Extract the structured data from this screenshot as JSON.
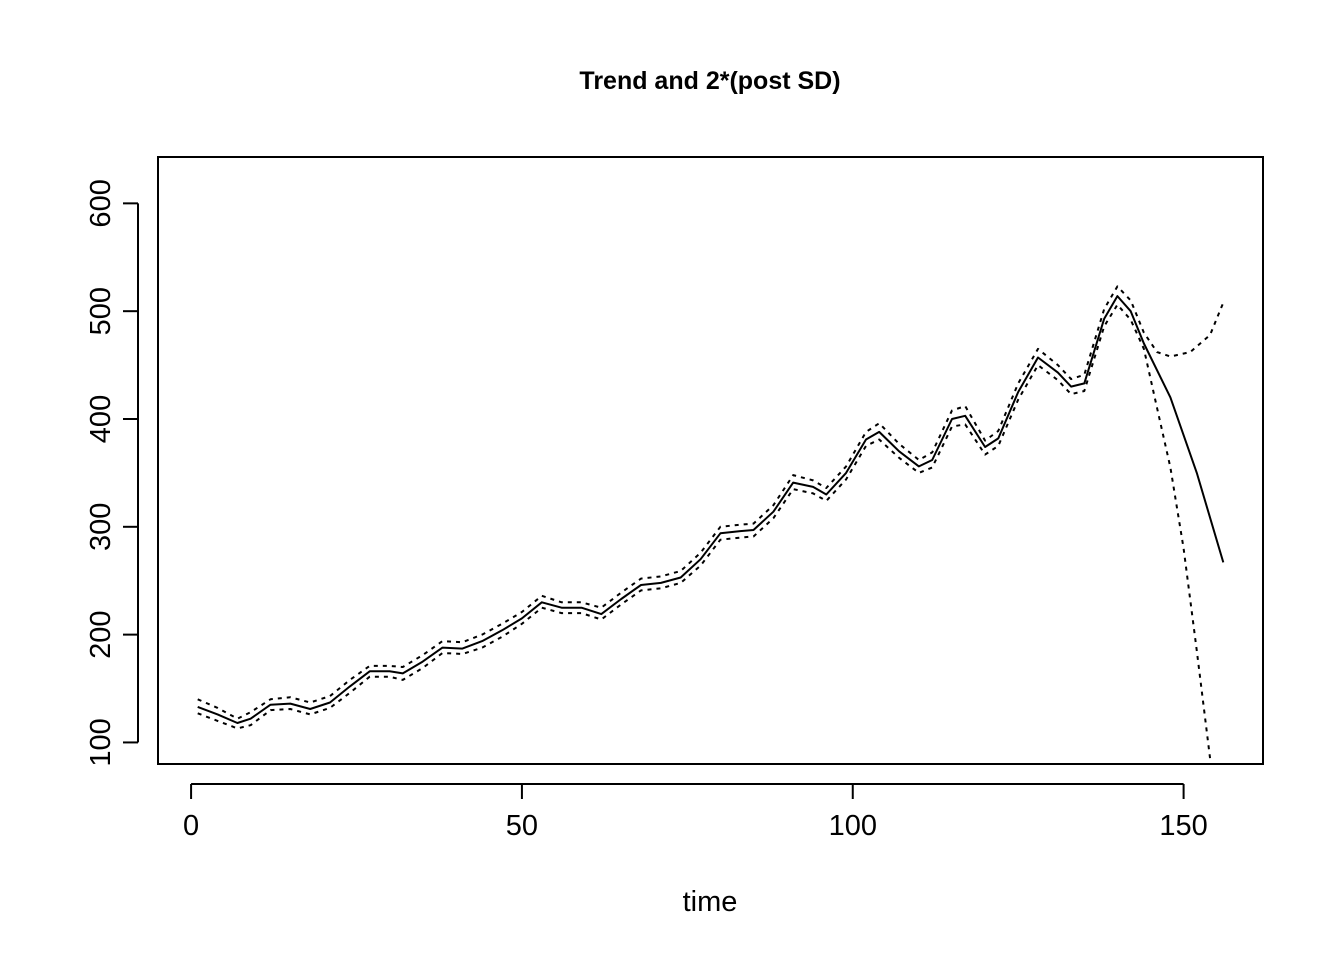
{
  "chart_data": {
    "type": "line",
    "title": "Trend and 2*(post SD)",
    "xlabel": "time",
    "ylabel": "",
    "xlim": [
      -5,
      162
    ],
    "ylim": [
      80,
      643
    ],
    "xticks": [
      0,
      50,
      100,
      150
    ],
    "yticks": [
      100,
      200,
      300,
      400,
      500,
      600
    ],
    "grid": false,
    "legend": "none",
    "series": [
      {
        "style": "solid",
        "color": "#000000",
        "points": [
          [
            1,
            133
          ],
          [
            4,
            126
          ],
          [
            7,
            118
          ],
          [
            9,
            122
          ],
          [
            12,
            135
          ],
          [
            15,
            136
          ],
          [
            18,
            131
          ],
          [
            21,
            137
          ],
          [
            24,
            152
          ],
          [
            27,
            166
          ],
          [
            30,
            166
          ],
          [
            32,
            164
          ],
          [
            35,
            175
          ],
          [
            38,
            188
          ],
          [
            41,
            187
          ],
          [
            44,
            194
          ],
          [
            47,
            204
          ],
          [
            50,
            215
          ],
          [
            53,
            230
          ],
          [
            56,
            225
          ],
          [
            59,
            225
          ],
          [
            62,
            219
          ],
          [
            65,
            233
          ],
          [
            68,
            246
          ],
          [
            71,
            248
          ],
          [
            74,
            253
          ],
          [
            77,
            270
          ],
          [
            80,
            294
          ],
          [
            83,
            296
          ],
          [
            85,
            297
          ],
          [
            88,
            314
          ],
          [
            91,
            341
          ],
          [
            94,
            337
          ],
          [
            96,
            330
          ],
          [
            99,
            350
          ],
          [
            102,
            381
          ],
          [
            104,
            388
          ],
          [
            107,
            370
          ],
          [
            110,
            356
          ],
          [
            112,
            362
          ],
          [
            115,
            400
          ],
          [
            117,
            403
          ],
          [
            120,
            374
          ],
          [
            122,
            382
          ],
          [
            125,
            425
          ],
          [
            128,
            457
          ],
          [
            131,
            443
          ],
          [
            133,
            430
          ],
          [
            135,
            433
          ],
          [
            138,
            493
          ],
          [
            140,
            514
          ],
          [
            142,
            500
          ],
          [
            144,
            470
          ],
          [
            148,
            420
          ],
          [
            152,
            350
          ],
          [
            156,
            267
          ]
        ]
      },
      {
        "style": "dotted",
        "color": "#000000",
        "points": [
          [
            1,
            140
          ],
          [
            4,
            132
          ],
          [
            7,
            122
          ],
          [
            9,
            128
          ],
          [
            12,
            140
          ],
          [
            15,
            142
          ],
          [
            18,
            137
          ],
          [
            21,
            143
          ],
          [
            24,
            158
          ],
          [
            27,
            171
          ],
          [
            30,
            171
          ],
          [
            32,
            170
          ],
          [
            35,
            181
          ],
          [
            38,
            194
          ],
          [
            41,
            193
          ],
          [
            44,
            200
          ],
          [
            47,
            210
          ],
          [
            50,
            221
          ],
          [
            53,
            236
          ],
          [
            56,
            230
          ],
          [
            59,
            230
          ],
          [
            62,
            225
          ],
          [
            65,
            239
          ],
          [
            68,
            252
          ],
          [
            71,
            254
          ],
          [
            74,
            259
          ],
          [
            77,
            276
          ],
          [
            80,
            300
          ],
          [
            83,
            302
          ],
          [
            85,
            303
          ],
          [
            88,
            320
          ],
          [
            91,
            348
          ],
          [
            94,
            343
          ],
          [
            96,
            336
          ],
          [
            99,
            356
          ],
          [
            102,
            388
          ],
          [
            104,
            396
          ],
          [
            107,
            377
          ],
          [
            110,
            362
          ],
          [
            112,
            369
          ],
          [
            115,
            408
          ],
          [
            117,
            412
          ],
          [
            120,
            380
          ],
          [
            122,
            389
          ],
          [
            125,
            433
          ],
          [
            128,
            465
          ],
          [
            131,
            450
          ],
          [
            133,
            437
          ],
          [
            135,
            441
          ],
          [
            138,
            502
          ],
          [
            140,
            523
          ],
          [
            142,
            510
          ],
          [
            144,
            480
          ],
          [
            146,
            462
          ],
          [
            148,
            458
          ],
          [
            151,
            462
          ],
          [
            154,
            478
          ],
          [
            156,
            508
          ]
        ]
      },
      {
        "style": "dotted",
        "color": "#000000",
        "points": [
          [
            1,
            127
          ],
          [
            4,
            120
          ],
          [
            7,
            113
          ],
          [
            9,
            116
          ],
          [
            12,
            130
          ],
          [
            15,
            131
          ],
          [
            18,
            126
          ],
          [
            21,
            132
          ],
          [
            24,
            146
          ],
          [
            27,
            161
          ],
          [
            30,
            161
          ],
          [
            32,
            158
          ],
          [
            35,
            169
          ],
          [
            38,
            183
          ],
          [
            41,
            182
          ],
          [
            44,
            188
          ],
          [
            47,
            198
          ],
          [
            50,
            210
          ],
          [
            53,
            225
          ],
          [
            56,
            220
          ],
          [
            59,
            220
          ],
          [
            62,
            214
          ],
          [
            65,
            228
          ],
          [
            68,
            241
          ],
          [
            71,
            243
          ],
          [
            74,
            248
          ],
          [
            77,
            264
          ],
          [
            80,
            288
          ],
          [
            83,
            290
          ],
          [
            85,
            291
          ],
          [
            88,
            308
          ],
          [
            91,
            335
          ],
          [
            94,
            331
          ],
          [
            96,
            324
          ],
          [
            99,
            344
          ],
          [
            102,
            375
          ],
          [
            104,
            381
          ],
          [
            107,
            364
          ],
          [
            110,
            350
          ],
          [
            112,
            355
          ],
          [
            115,
            393
          ],
          [
            117,
            395
          ],
          [
            120,
            367
          ],
          [
            122,
            375
          ],
          [
            125,
            418
          ],
          [
            128,
            450
          ],
          [
            131,
            436
          ],
          [
            133,
            423
          ],
          [
            135,
            426
          ],
          [
            138,
            486
          ],
          [
            140,
            506
          ],
          [
            142,
            492
          ],
          [
            144,
            465
          ],
          [
            146,
            410
          ],
          [
            148,
            355
          ],
          [
            150,
            280
          ],
          [
            152,
            185
          ],
          [
            154,
            85
          ]
        ]
      }
    ]
  }
}
